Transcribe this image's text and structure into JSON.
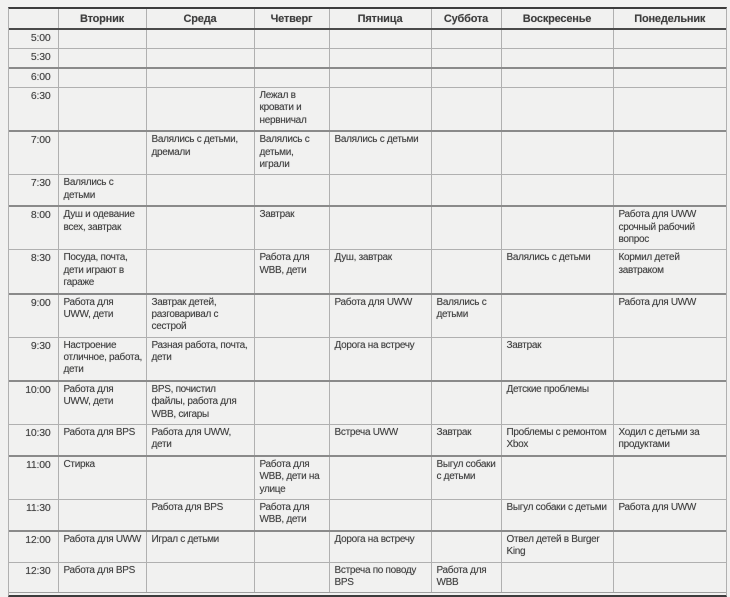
{
  "colors": {
    "paper": "#f1f1f0",
    "ink": "#3e3e3e",
    "grid_light": "#b0b0b0",
    "grid_mid": "#8a8a8a",
    "grid_dark": "#3c3c3c"
  },
  "table": {
    "corner_label": "",
    "columns": [
      "Вторник",
      "Среда",
      "Четверг",
      "Пятница",
      "Суббота",
      "Воскресенье",
      "Понедельник"
    ],
    "rows": [
      {
        "time": "5:00",
        "cells": [
          "",
          "",
          "",
          "",
          "",
          "",
          ""
        ]
      },
      {
        "time": "5:30",
        "cells": [
          "",
          "",
          "",
          "",
          "",
          "",
          ""
        ]
      },
      {
        "time": "6:00",
        "cells": [
          "",
          "",
          "",
          "",
          "",
          "",
          ""
        ]
      },
      {
        "time": "6:30",
        "cells": [
          "",
          "",
          "Лежал в кровати и нервничал",
          "",
          "",
          "",
          ""
        ]
      },
      {
        "time": "7:00",
        "cells": [
          "",
          "Валялись с детьми, дремали",
          "Валялись с детьми, играли",
          "Валялись с детьми",
          "",
          "",
          ""
        ]
      },
      {
        "time": "7:30",
        "cells": [
          "Валялись с детьми",
          "",
          "",
          "",
          "",
          "",
          ""
        ]
      },
      {
        "time": "8:00",
        "cells": [
          "Душ и одевание всех, завтрак",
          "",
          "Завтрак",
          "",
          "",
          "",
          "Работа для UWW срочный рабочий вопрос"
        ]
      },
      {
        "time": "8:30",
        "cells": [
          "Посуда, почта, дети играют в гараже",
          "",
          "Работа для WBB, дети",
          "Душ, завтрак",
          "",
          "Валялись с детьми",
          "Кормил детей завтраком"
        ]
      },
      {
        "time": "9:00",
        "cells": [
          "Работа для UWW, дети",
          "Завтрак детей, разговаривал с сестрой",
          "",
          "Работа для UWW",
          "Валялись с детьми",
          "",
          "Работа для UWW"
        ]
      },
      {
        "time": "9:30",
        "cells": [
          "Настроение отличное, работа, дети",
          "Разная работа, почта, дети",
          "",
          "Дорога на встречу",
          "",
          "Завтрак",
          ""
        ]
      },
      {
        "time": "10:00",
        "cells": [
          "Работа для UWW, дети",
          "BPS, почистил файлы, работа для WBB, сигары",
          "",
          "",
          "",
          "Детские проблемы",
          ""
        ]
      },
      {
        "time": "10:30",
        "cells": [
          "Работа для BPS",
          "Работа для UWW, дети",
          "",
          "Встреча UWW",
          "Завтрак",
          "Проблемы с ремонтом Xbox",
          "Ходил с детьми за продуктами"
        ]
      },
      {
        "time": "11:00",
        "cells": [
          "Стирка",
          "",
          "Работа для WBB, дети на улице",
          "",
          "Выгул собаки с детьми",
          "",
          ""
        ]
      },
      {
        "time": "11:30",
        "cells": [
          "",
          "Работа для BPS",
          "Работа для WBB, дети",
          "",
          "",
          "Выгул собаки с детьми",
          "Работа для UWW"
        ]
      },
      {
        "time": "12:00",
        "cells": [
          "Работа для UWW",
          "Играл с детьми",
          "",
          "Дорога на встречу",
          "",
          "Отвел детей в Burger King",
          ""
        ]
      },
      {
        "time": "12:30",
        "cells": [
          "Работа для BPS",
          "",
          "",
          "Встреча по поводу BPS",
          "Работа для WBB",
          "",
          ""
        ]
      }
    ]
  }
}
